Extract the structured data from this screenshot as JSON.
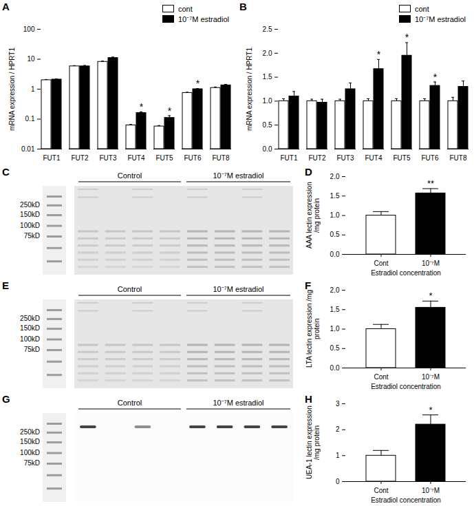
{
  "chart_data": [
    {
      "panel": "A",
      "type": "bar",
      "ylabel": "mRNA expression / HPRT1",
      "log": "y",
      "grid": false,
      "legend": "top-right",
      "categories": [
        "FUT1",
        "FUT2",
        "FUT3",
        "FUT4",
        "FUT5",
        "FUT6",
        "FUT8"
      ],
      "series": [
        {
          "name": "cont",
          "color": "#ffffff",
          "values": [
            2.0,
            5.8,
            8.2,
            0.062,
            0.057,
            0.75,
            1.1
          ],
          "errors": [
            0.1,
            0.3,
            0.5,
            0.004,
            0.004,
            0.04,
            0.08
          ]
        },
        {
          "name": "10⁻⁷M estradiol",
          "color": "#000000",
          "values": [
            2.1,
            5.8,
            11,
            0.16,
            0.11,
            1.0,
            1.35
          ],
          "errors": [
            0.1,
            0.4,
            0.8,
            0.015,
            0.02,
            0.05,
            0.1
          ]
        }
      ],
      "ylim": [
        0.01,
        100
      ],
      "yticks": [
        0.01,
        0.1,
        1,
        10,
        100
      ],
      "annotations": [
        {
          "text": "*",
          "category": "FUT4",
          "series": "10⁻⁷M estradiol"
        },
        {
          "text": "*",
          "category": "FUT5",
          "series": "10⁻⁷M estradiol"
        },
        {
          "text": "*",
          "category": "FUT6",
          "series": "10⁻⁷M estradiol"
        }
      ]
    },
    {
      "panel": "B",
      "type": "bar",
      "ylabel": "mRNA expression / HPRT1",
      "grid": false,
      "legend": "top-right",
      "categories": [
        "FUT1",
        "FUT2",
        "FUT3",
        "FUT4",
        "FUT5",
        "FUT6",
        "FUT8"
      ],
      "series": [
        {
          "name": "cont",
          "color": "#ffffff",
          "values": [
            1.0,
            1.0,
            1.0,
            1.0,
            1.0,
            1.0,
            1.0
          ],
          "errors": [
            0.05,
            0.04,
            0.04,
            0.05,
            0.05,
            0.05,
            0.08
          ]
        },
        {
          "name": "10⁻⁷M estradiol",
          "color": "#000000",
          "values": [
            1.1,
            0.97,
            1.25,
            1.67,
            1.95,
            1.32,
            1.3
          ],
          "errors": [
            0.1,
            0.07,
            0.13,
            0.2,
            0.27,
            0.08,
            0.12
          ]
        }
      ],
      "ylim": [
        0,
        2.5
      ],
      "yticks": [
        {
          "value": 0,
          "label": "0.0"
        },
        {
          "value": 0.5,
          "label": "0.5"
        },
        {
          "value": 1,
          "label": "1.0"
        },
        {
          "value": 1.5,
          "label": "1.5"
        },
        {
          "value": 2,
          "label": "2.0"
        },
        {
          "value": 2.5,
          "label": "2.5"
        }
      ],
      "annotations": [
        {
          "text": "*",
          "category": "FUT4",
          "series": "10⁻⁷M estradiol"
        },
        {
          "text": "*",
          "category": "FUT5",
          "series": "10⁻⁷M estradiol"
        },
        {
          "text": "*",
          "category": "FUT6",
          "series": "10⁻⁷M estradiol"
        }
      ]
    },
    {
      "panel": "D",
      "type": "bar",
      "ylabel": "AAA lectin expression /mg protein",
      "xlabel": "Estradiol concentration",
      "grid": false,
      "categories": [
        "Cont",
        "10⁻⁷M"
      ],
      "values": [
        1.0,
        1.57
      ],
      "errors": [
        0.1,
        0.12
      ],
      "colors": [
        "#ffffff",
        "#000000"
      ],
      "ylim": [
        0,
        2
      ],
      "yticks": [
        {
          "value": 0,
          "label": "0.0"
        },
        {
          "value": 0.5,
          "label": "0.5"
        },
        {
          "value": 1,
          "label": "1.0"
        },
        {
          "value": 1.5,
          "label": "1.5"
        },
        {
          "value": 2,
          "label": "2.0"
        }
      ],
      "annotations": [
        {
          "text": "**",
          "category": "10⁻⁷M"
        }
      ]
    },
    {
      "panel": "F",
      "type": "bar",
      "ylabel": "LTA lectin expression /mg protein",
      "xlabel": "Estradiol concentration",
      "grid": false,
      "categories": [
        "Cont",
        "10⁻⁷M"
      ],
      "values": [
        1.0,
        1.55
      ],
      "errors": [
        0.12,
        0.17
      ],
      "colors": [
        "#ffffff",
        "#000000"
      ],
      "ylim": [
        0,
        2
      ],
      "yticks": [
        {
          "value": 0,
          "label": "0.0"
        },
        {
          "value": 0.5,
          "label": "0.5"
        },
        {
          "value": 1,
          "label": "1.0"
        },
        {
          "value": 1.5,
          "label": "1.5"
        },
        {
          "value": 2,
          "label": "2.0"
        }
      ],
      "annotations": [
        {
          "text": "*",
          "category": "10⁻⁷M"
        }
      ]
    },
    {
      "panel": "H",
      "type": "bar",
      "ylabel": "UEA-1 lectin expression /mg protein",
      "xlabel": "Estradiol concentration",
      "grid": false,
      "categories": [
        "Cont",
        "10⁻⁷M"
      ],
      "values": [
        1.0,
        2.2
      ],
      "errors": [
        0.2,
        0.37
      ],
      "colors": [
        "#ffffff",
        "#000000"
      ],
      "ylim": [
        0,
        3
      ],
      "yticks": [
        0,
        1,
        2,
        3
      ],
      "annotations": [
        {
          "text": "*",
          "category": "10⁻⁷M"
        }
      ]
    }
  ],
  "blots": [
    {
      "panel": "C",
      "ladder": [
        "250kD",
        "150kD",
        "100kD",
        "75kD"
      ],
      "groups": [
        "Control",
        "10⁻⁷M estradiol"
      ]
    },
    {
      "panel": "E",
      "ladder": [
        "250kD",
        "150kD",
        "100kD",
        "75kD"
      ],
      "groups": [
        "Control",
        "10⁻⁷M estradiol"
      ]
    },
    {
      "panel": "G",
      "ladder": [
        "250kD",
        "150kD",
        "100kD",
        "75kD"
      ],
      "groups": [
        "Control",
        "10⁻⁷M estradiol"
      ]
    }
  ]
}
